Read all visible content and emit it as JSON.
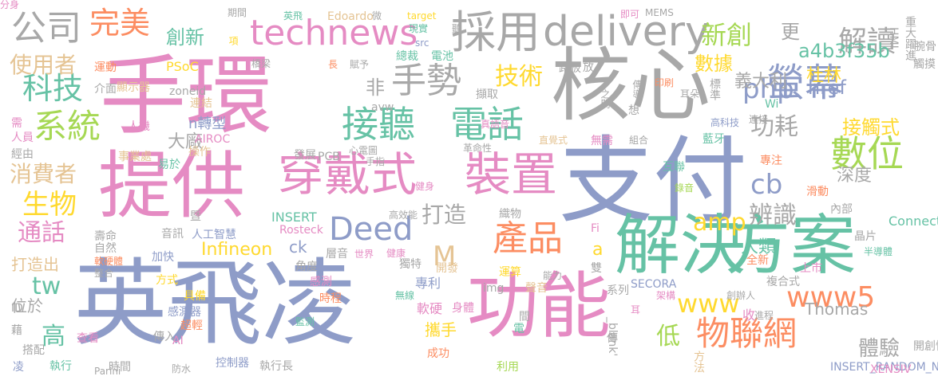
{
  "colors": {
    "grey": "#A8A8A8",
    "blue": "#8E9CC8",
    "pink": "#E58BC3",
    "green": "#66C2A5",
    "orange": "#FC8D62",
    "yellow": "#FFD92F",
    "tan": "#E5C494",
    "lime": "#A6D854"
  },
  "words": [
    {
      "text": "英飛凌",
      "color": "blue"
    },
    {
      "text": "支付",
      "color": "blue"
    },
    {
      "text": "手環",
      "color": "pink"
    },
    {
      "text": "提供",
      "color": "pink"
    },
    {
      "text": "核心",
      "color": "grey"
    },
    {
      "text": "功能",
      "color": "pink"
    },
    {
      "text": "解決",
      "color": "green"
    },
    {
      "text": "方案",
      "color": "green"
    },
    {
      "text": "穿戴式",
      "color": "pink"
    },
    {
      "text": "裝置",
      "color": "pink"
    },
    {
      "text": "採用",
      "color": "grey"
    },
    {
      "text": "delivery",
      "color": "grey"
    },
    {
      "text": "technews",
      "color": "pink"
    },
    {
      "text": "電話",
      "color": "green"
    },
    {
      "text": "接聽",
      "color": "green"
    },
    {
      "text": "產品",
      "color": "orange"
    },
    {
      "text": "Deed",
      "color": "blue"
    },
    {
      "text": "公司",
      "color": "grey"
    },
    {
      "text": "完美",
      "color": "orange"
    },
    {
      "text": "手勢",
      "color": "grey"
    },
    {
      "text": "系統",
      "color": "lime"
    },
    {
      "text": "科技",
      "color": "green"
    },
    {
      "text": "數位",
      "color": "lime"
    },
    {
      "text": "物聯網",
      "color": "orange"
    },
    {
      "text": "螢幕",
      "color": "blue"
    },
    {
      "text": "php",
      "color": "blue"
    },
    {
      "text": "www5",
      "color": "orange"
    },
    {
      "text": "www",
      "color": "yellow"
    },
    {
      "text": "amp",
      "color": "yellow"
    },
    {
      "text": "cb",
      "color": "blue"
    },
    {
      "text": "M",
      "color": "tan"
    },
    {
      "text": "tw",
      "color": "green"
    },
    {
      "text": "生物",
      "color": "yellow"
    },
    {
      "text": "新創",
      "color": "lime"
    },
    {
      "text": "解讀",
      "color": "grey"
    },
    {
      "text": "使用者",
      "color": "tan"
    },
    {
      "text": "消費者",
      "color": "tan"
    },
    {
      "text": "技術",
      "color": "yellow"
    },
    {
      "text": "非",
      "color": "grey"
    },
    {
      "text": "功耗",
      "color": "grey"
    },
    {
      "text": "打造",
      "color": "grey"
    },
    {
      "text": "辨識",
      "color": "grey"
    },
    {
      "text": "通話",
      "color": "pink"
    },
    {
      "text": "低",
      "color": "lime"
    },
    {
      "text": "高",
      "color": "green"
    },
    {
      "text": "體驗",
      "color": "grey"
    },
    {
      "text": "創新",
      "color": "green"
    },
    {
      "text": "a4b3f35b",
      "color": "green"
    },
    {
      "text": "更",
      "color": "grey"
    },
    {
      "text": "數據",
      "color": "yellow"
    },
    {
      "text": "杜林",
      "color": "yellow"
    },
    {
      "text": "義大利",
      "color": "grey"
    },
    {
      "text": "href",
      "color": "blue"
    },
    {
      "text": "接觸式",
      "color": "yellow"
    },
    {
      "text": "深度",
      "color": "grey"
    },
    {
      "text": "人類",
      "color": "green"
    },
    {
      "text": "大廠",
      "color": "grey"
    },
    {
      "text": "Infineon",
      "color": "yellow"
    },
    {
      "text": "ck",
      "color": "blue"
    },
    {
      "text": "打造出",
      "color": "tan"
    },
    {
      "text": "位於",
      "color": "grey"
    },
    {
      "text": "攜手",
      "color": "yellow"
    },
    {
      "text": "a",
      "color": "yellow"
    },
    {
      "text": "n轉型",
      "color": "blue"
    },
    {
      "text": "Thomas",
      "color": "grey"
    },
    {
      "text": "運動",
      "color": "orange"
    },
    {
      "text": "顯示器",
      "color": "tan"
    },
    {
      "text": "PSoC",
      "color": "yellow"
    },
    {
      "text": "介面",
      "color": "grey"
    },
    {
      "text": "zoneid",
      "color": "grey"
    },
    {
      "text": "連結",
      "color": "tan"
    },
    {
      "text": "人機",
      "color": "pink"
    },
    {
      "text": "AIROC",
      "color": "pink"
    },
    {
      "text": "操作",
      "color": "tan"
    },
    {
      "text": "事業處",
      "color": "tan"
    },
    {
      "text": "易於",
      "color": "green"
    },
    {
      "text": "發展",
      "color": "grey"
    },
    {
      "text": "PCB",
      "color": "grey"
    },
    {
      "text": "心電圖",
      "color": "grey"
    },
    {
      "text": "手指",
      "color": "grey"
    },
    {
      "text": "革命性",
      "color": "grey"
    },
    {
      "text": "直覺式",
      "color": "tan"
    },
    {
      "text": "無需",
      "color": "pink"
    },
    {
      "text": "組合",
      "color": "grey"
    },
    {
      "text": "互聯",
      "color": "green"
    },
    {
      "text": "藍牙",
      "color": "green"
    },
    {
      "text": "專注",
      "color": "orange"
    },
    {
      "text": "滑動",
      "color": "orange"
    },
    {
      "text": "錄音",
      "color": "lime"
    },
    {
      "text": "織物",
      "color": "grey"
    },
    {
      "text": "INSERT",
      "color": "green"
    },
    {
      "text": "Rosteck",
      "color": "pink"
    },
    {
      "text": "高效能",
      "color": "grey"
    },
    {
      "text": "健身",
      "color": "pink"
    },
    {
      "text": "內部",
      "color": "grey"
    },
    {
      "text": "Connect",
      "color": "green"
    },
    {
      "text": "晶片",
      "color": "grey"
    },
    {
      "text": "半導體",
      "color": "green"
    },
    {
      "text": "全新",
      "color": "orange"
    },
    {
      "text": "複合式",
      "color": "grey"
    },
    {
      "text": "上市",
      "color": "pink"
    },
    {
      "text": "收",
      "color": "pink"
    },
    {
      "text": "SECORA",
      "color": "blue"
    },
    {
      "text": "架構",
      "color": "pink"
    },
    {
      "text": "創辦人",
      "color": "grey"
    },
    {
      "text": "進程",
      "color": "grey"
    },
    {
      "text": "雙",
      "color": "grey"
    },
    {
      "text": "運算",
      "color": "yellow"
    },
    {
      "text": "聲音",
      "color": "tan"
    },
    {
      "text": "能力",
      "color": "grey"
    },
    {
      "text": "img",
      "color": "grey"
    },
    {
      "text": "無線",
      "color": "green"
    },
    {
      "text": "軟硬",
      "color": "pink"
    },
    {
      "text": "身體",
      "color": "pink"
    },
    {
      "text": "專利",
      "color": "blue"
    },
    {
      "text": "開發",
      "color": "tan"
    },
    {
      "text": "獨特",
      "color": "grey"
    },
    {
      "text": "健康",
      "color": "pink"
    },
    {
      "text": "世界",
      "color": "pink"
    },
    {
      "text": "層音",
      "color": "grey"
    },
    {
      "text": "壽命",
      "color": "grey"
    },
    {
      "text": "自然",
      "color": "grey"
    },
    {
      "text": "音訊",
      "color": "grey"
    },
    {
      "text": "人工智慧",
      "color": "blue"
    },
    {
      "text": "軟硬體",
      "color": "orange"
    },
    {
      "text": "加快",
      "color": "blue"
    },
    {
      "text": "角度",
      "color": "grey"
    },
    {
      "text": "感測",
      "color": "pink"
    },
    {
      "text": "時程",
      "color": "orange"
    },
    {
      "text": "方式",
      "color": "yellow"
    },
    {
      "text": "具備",
      "color": "yellow"
    },
    {
      "text": "感測器",
      "color": "blue"
    },
    {
      "text": "超輕",
      "color": "orange"
    },
    {
      "text": "查看",
      "color": "pink"
    },
    {
      "text": "傳入",
      "color": "grey"
    },
    {
      "text": "監測",
      "color": "green"
    },
    {
      "text": "成功",
      "color": "orange"
    },
    {
      "text": "時間",
      "color": "grey"
    },
    {
      "text": "防水",
      "color": "grey"
    },
    {
      "text": "控制器",
      "color": "blue"
    },
    {
      "text": "執行長",
      "color": "grey"
    },
    {
      "text": "利用",
      "color": "lime"
    },
    {
      "text": "INSERT_RANDOM_NUMBER_HERE'",
      "color": "blue"
    },
    {
      "text": "XENSIV",
      "color": "pink"
    },
    {
      "text": "期間",
      "color": "grey"
    },
    {
      "text": "英飛",
      "color": "green"
    },
    {
      "text": "Edoardo",
      "color": "tan"
    },
    {
      "text": "微",
      "color": "grey"
    },
    {
      "text": "target",
      "color": "yellow"
    },
    {
      "text": "即可",
      "color": "pink"
    },
    {
      "text": "MEMS",
      "color": "grey"
    },
    {
      "text": "HMI",
      "color": "grey"
    },
    {
      "text": "重大躍進",
      "color": "grey"
    },
    {
      "text": "腕骨",
      "color": "grey"
    },
    {
      "text": "觸摸",
      "color": "grey"
    },
    {
      "text": "Wi",
      "color": "green"
    },
    {
      "text": "連接",
      "color": "grey"
    },
    {
      "text": "高科技",
      "color": "blue"
    },
    {
      "text": "耳朵",
      "color": "grey"
    },
    {
      "text": "標準",
      "color": "grey"
    },
    {
      "text": "印刷",
      "color": "orange"
    },
    {
      "text": "傳導",
      "color": "grey"
    },
    {
      "text": "之間",
      "color": "grey"
    },
    {
      "text": "放",
      "color": "grey"
    },
    {
      "text": "路板",
      "color": "grey"
    },
    {
      "text": "總裁",
      "color": "green"
    },
    {
      "text": "電池",
      "color": "green"
    },
    {
      "text": "現實",
      "color": "green"
    },
    {
      "text": "avw",
      "color": "grey"
    },
    {
      "text": "src",
      "color": "blue"
    },
    {
      "text": "長",
      "color": "orange"
    },
    {
      "text": "賦予",
      "color": "grey"
    },
    {
      "text": "橋梁",
      "color": "grey"
    },
    {
      "text": "項",
      "color": "yellow"
    },
    {
      "text": "擷取",
      "color": "grey"
    },
    {
      "text": "真語音",
      "color": "pink"
    },
    {
      "text": "想",
      "color": "grey"
    },
    {
      "text": "需",
      "color": "pink"
    },
    {
      "text": "人員",
      "color": "pink"
    },
    {
      "text": "經由",
      "color": "grey"
    },
    {
      "text": "整合",
      "color": "grey"
    },
    {
      "text": "ID",
      "color": "grey"
    },
    {
      "text": "藉",
      "color": "grey"
    },
    {
      "text": "搭配",
      "color": "grey"
    },
    {
      "text": "凌",
      "color": "blue"
    },
    {
      "text": "執行",
      "color": "green"
    },
    {
      "text": "Parini",
      "color": "grey"
    },
    {
      "text": "暨",
      "color": "grey"
    },
    {
      "text": "電",
      "color": "green"
    },
    {
      "text": "AI",
      "color": "pink"
    },
    {
      "text": "Fi",
      "color": "pink"
    },
    {
      "text": "系列",
      "color": "grey"
    },
    {
      "text": "耳",
      "color": "pink"
    },
    {
      "text": "間",
      "color": "grey"
    },
    {
      "text": "_blank'",
      "color": "grey"
    },
    {
      "text": "方法",
      "color": "tan"
    },
    {
      "text": "傳",
      "color": "grey"
    },
    {
      "text": "開創性",
      "color": "grey"
    },
    {
      "text": "聽",
      "color": "grey"
    },
    {
      "text": "分身",
      "color": "pink"
    }
  ]
}
